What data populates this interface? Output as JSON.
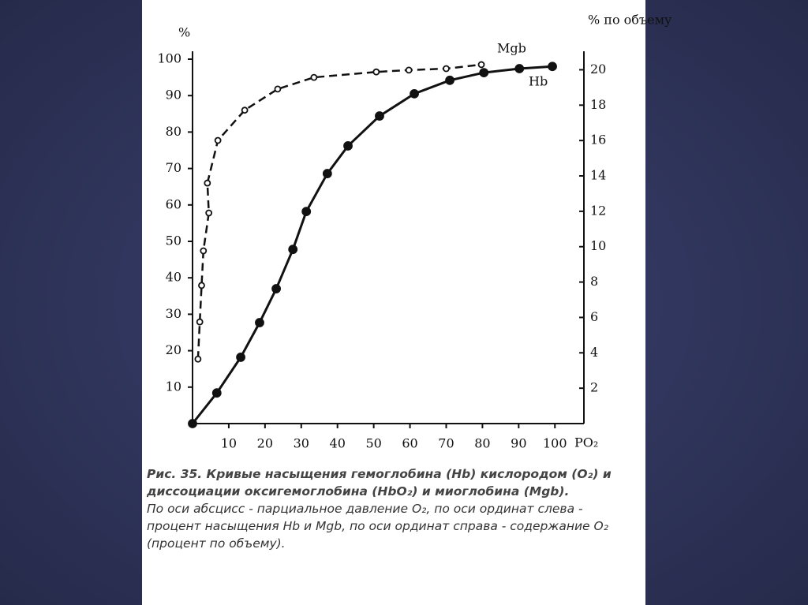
{
  "chart_data": {
    "type": "line",
    "ylabel": "%",
    "y2label": "% по объему",
    "xlabel": "PO₂",
    "xlim": [
      0,
      108
    ],
    "xticks": [
      10,
      20,
      30,
      40,
      50,
      60,
      70,
      80,
      90,
      100
    ],
    "ylim": [
      0,
      100
    ],
    "yticks": [
      10,
      20,
      30,
      40,
      50,
      60,
      70,
      80,
      90,
      100
    ],
    "y2lim": [
      0,
      20.6
    ],
    "y2ticks": [
      2,
      4,
      6,
      8,
      10,
      12,
      14,
      16,
      18,
      20
    ],
    "series": [
      {
        "name": "Hb",
        "color": "#111111",
        "dashed": false,
        "marker": "filled",
        "x": [
          0,
          6.7,
          13.3,
          18.5,
          23.1,
          27.7,
          31.4,
          37.2,
          42.9,
          51.6,
          61.2,
          71,
          80.4,
          90.2,
          99.3
        ],
        "values": [
          0,
          8.4,
          18.2,
          27.7,
          37,
          47.8,
          58.2,
          68.6,
          76.2,
          84.4,
          90.5,
          94.2,
          96.3,
          97.4,
          98
        ]
      },
      {
        "name": "Mgb",
        "color": "#111111",
        "dashed": true,
        "marker": "open",
        "x": [
          1.5,
          2,
          2.5,
          3,
          4.5,
          4.1,
          7,
          14.4,
          23.5,
          33.5,
          50.7,
          59.7,
          70,
          79.7
        ],
        "values": [
          17.7,
          27.9,
          37.9,
          47.4,
          57.8,
          66,
          77.7,
          86,
          91.8,
          95,
          96.5,
          97,
          97.4,
          98.5
        ]
      }
    ]
  },
  "caption": {
    "title": "Рис. 35. Кривые насыщения гемоглобина (Hb) кислородом (O₂) и диссоциации оксигемоглобина (HbO₂) и миоглобина (Mgb).",
    "text": "По оси абсцисс - парциальное давление O₂,   по оси ординат слева - процент насыщения Hb и Mgb, по оси ординат справа - содержание O₂  (процент по объему)."
  }
}
